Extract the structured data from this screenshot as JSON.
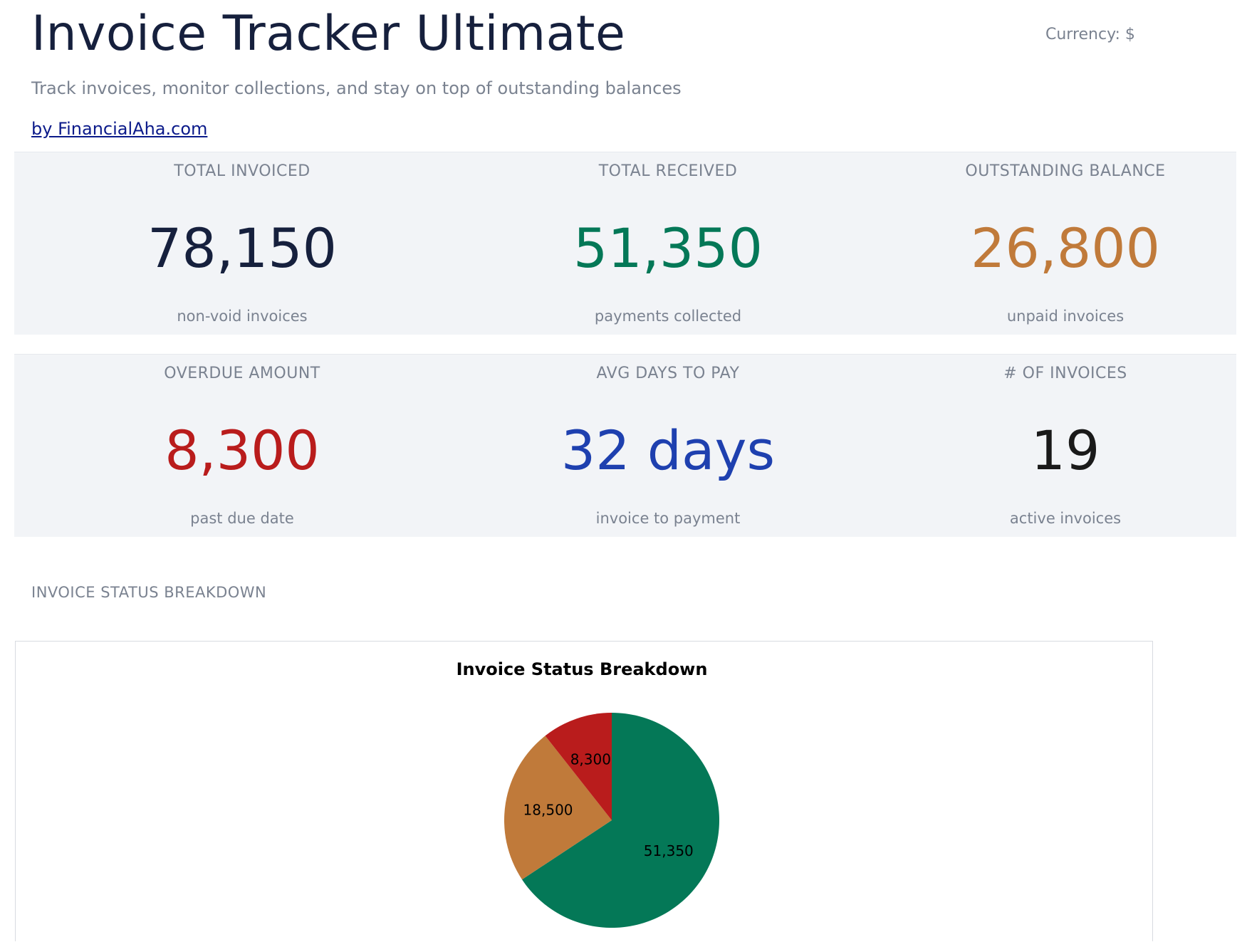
{
  "header": {
    "title": "Invoice Tracker Ultimate",
    "currency": "Currency: $",
    "subtitle": "Track invoices, monitor collections, and stay on top of outstanding balances",
    "byline": "by FinancialAha.com"
  },
  "kpis": {
    "total_invoiced": {
      "label": "TOTAL INVOICED",
      "value": "78,150",
      "sub": "non-void invoices",
      "color": "#16203d"
    },
    "total_received": {
      "label": "TOTAL RECEIVED",
      "value": "51,350",
      "sub": "payments collected",
      "color": "#047857"
    },
    "outstanding_balance": {
      "label": "OUTSTANDING BALANCE",
      "value": "26,800",
      "sub": "unpaid invoices",
      "color": "#c07a3a"
    },
    "overdue_amount": {
      "label": "OVERDUE AMOUNT",
      "value": "8,300",
      "sub": "past due date",
      "color": "#b91c1c"
    },
    "avg_days_to_pay": {
      "label": "AVG DAYS TO PAY",
      "value": "32 days",
      "sub": "invoice to payment",
      "color": "#1e40af"
    },
    "num_invoices": {
      "label": "# OF INVOICES",
      "value": "19",
      "sub": "active invoices",
      "color": "#1a1a1a"
    }
  },
  "status_section": {
    "title": "INVOICE STATUS BREAKDOWN"
  },
  "chart_data": {
    "type": "pie",
    "title": "Invoice Status Breakdown",
    "values": [
      51350,
      18500,
      8300
    ],
    "labels": [
      "51,350",
      "18,500",
      "8,300"
    ],
    "colors": [
      "#047857",
      "#c07a3a",
      "#b91c1c"
    ],
    "start": "12 o'clock",
    "direction": "clockwise"
  }
}
